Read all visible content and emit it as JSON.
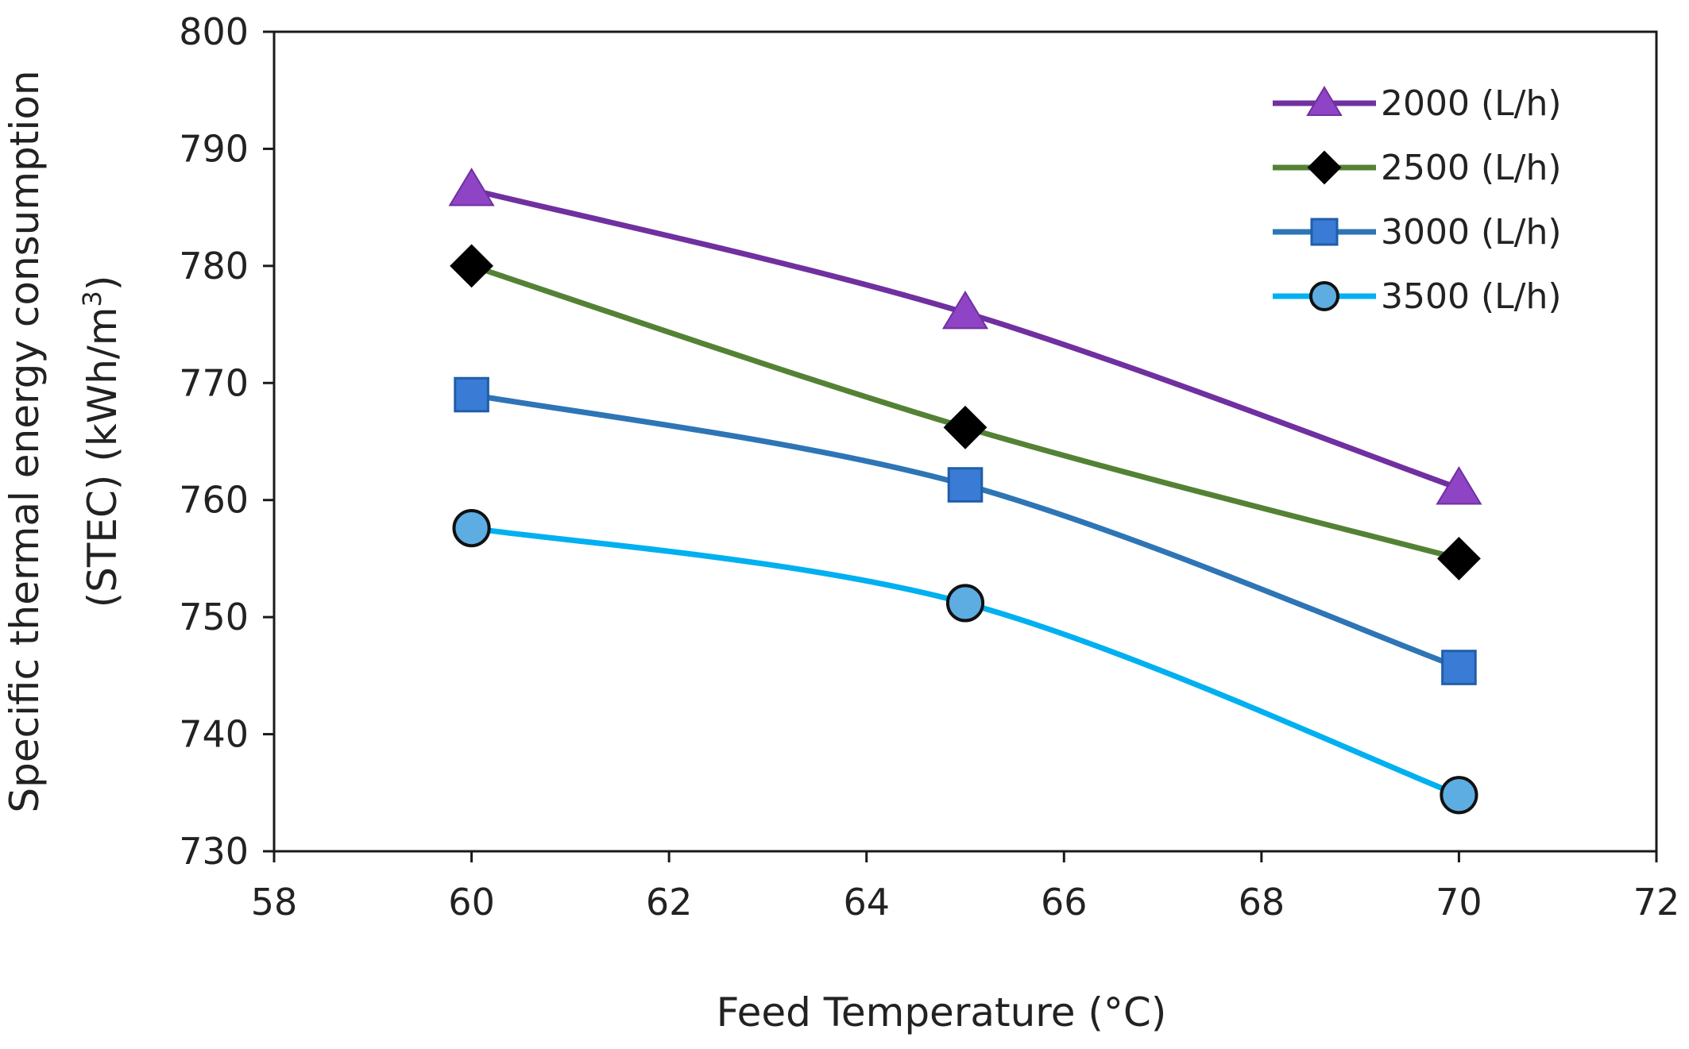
{
  "chart_data": {
    "type": "line",
    "title": "",
    "xlabel": "Feed Temperature (°C)",
    "ylabel_line1": "Specific thermal energy consumption",
    "ylabel_line2_prefix": "(STEC) (kWh/m",
    "ylabel_sup": "3",
    "ylabel_line2_suffix": ")",
    "xlim": [
      58,
      72
    ],
    "ylim": [
      730,
      800
    ],
    "xticks": [
      58,
      60,
      62,
      64,
      66,
      68,
      70,
      72
    ],
    "yticks": [
      730,
      740,
      750,
      760,
      770,
      780,
      790,
      800
    ],
    "grid": false,
    "legend_position": "top-right",
    "x": [
      60,
      65,
      70
    ],
    "series": [
      {
        "name": "2000 (L/h)",
        "values": [
          786.5,
          776.0,
          761.0
        ],
        "color": "#7030a0",
        "marker": "triangle"
      },
      {
        "name": "2500 (L/h)",
        "values": [
          780.0,
          766.2,
          755.0
        ],
        "color": "#548235",
        "marker": "diamond"
      },
      {
        "name": "3000 (L/h)",
        "values": [
          769.0,
          761.3,
          745.7
        ],
        "color": "#2e75b6",
        "marker": "square"
      },
      {
        "name": "3500 (L/h)",
        "values": [
          757.6,
          751.2,
          734.8
        ],
        "color": "#00b0f0",
        "marker": "circle"
      }
    ]
  }
}
